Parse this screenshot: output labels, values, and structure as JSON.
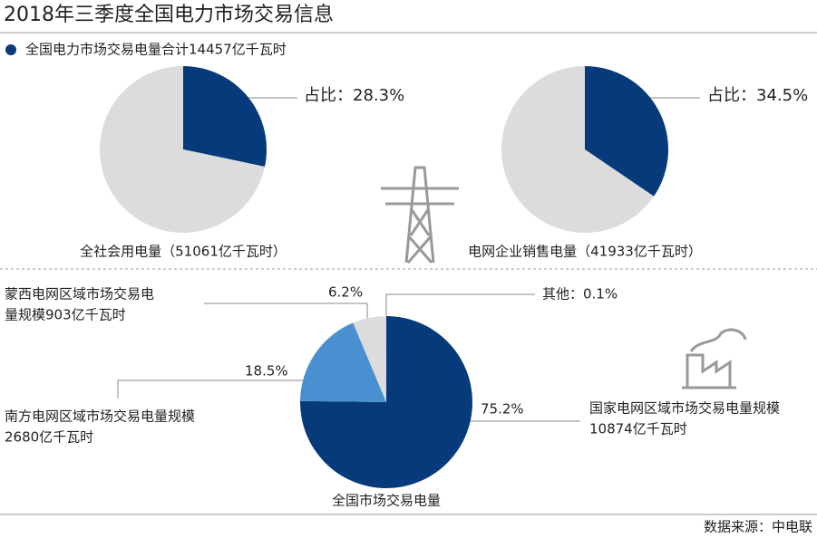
{
  "title": "2018年三季度全国电力市场交易信息",
  "legend": "全国电力市场交易电量合计14457亿千瓦时",
  "source": "数据来源：中电联",
  "chart_data": [
    {
      "type": "pie",
      "caption": "全社会用电量（51061亿千瓦时）",
      "values": [
        28.3,
        71.7
      ],
      "value_labels": [
        "占比：28.3%",
        null
      ],
      "colors": [
        "#063a7a",
        "#dcdcdc"
      ]
    },
    {
      "type": "pie",
      "caption": "电网企业销售电量（41933亿千瓦时）",
      "values": [
        34.5,
        65.5
      ],
      "value_labels": [
        "占比：34.5%",
        null
      ],
      "colors": [
        "#063a7a",
        "#dcdcdc"
      ]
    },
    {
      "type": "pie",
      "caption": "全国市场交易电量",
      "categories": [
        [
          "国家电网区域市场交易电量规模",
          "10874亿千瓦时"
        ],
        [
          "南方电网区域市场交易电量规模",
          "2680亿千瓦时"
        ],
        [
          "蒙西电网区域市场交易电",
          "量规模903亿千瓦时"
        ],
        null
      ],
      "values": [
        75.2,
        18.5,
        6.2,
        0.1
      ],
      "value_labels": [
        "75.2%",
        "18.5%",
        "6.2%",
        "其他：0.1%"
      ],
      "colors": [
        "#063a7a",
        "#4a8fcf",
        "#dcdcdc",
        "#dcdcdc"
      ]
    }
  ]
}
